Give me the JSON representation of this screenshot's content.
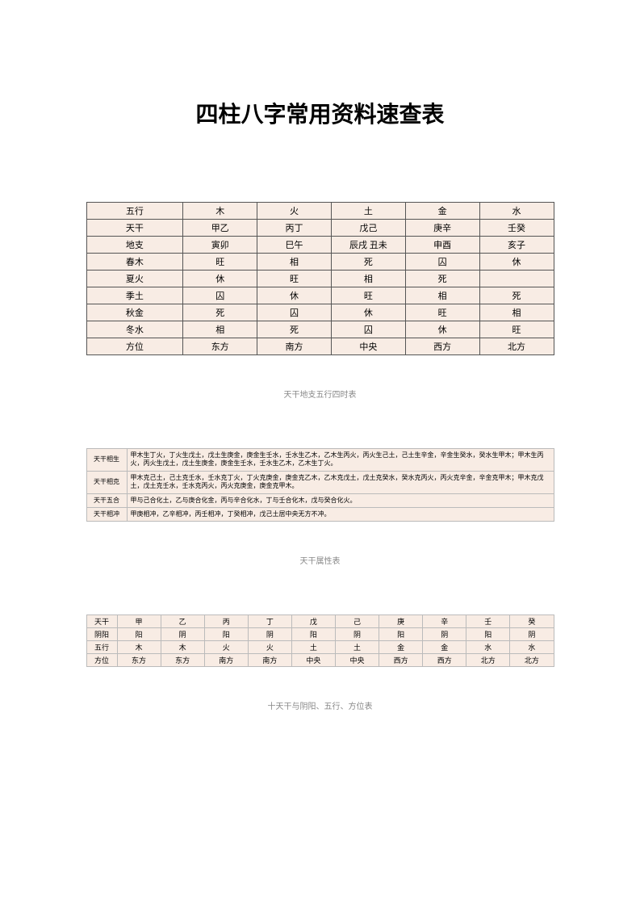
{
  "title": "四柱八字常用资料速查表",
  "table1": {
    "rows": [
      [
        "五行",
        "木",
        "火",
        "土",
        "金",
        "水"
      ],
      [
        "天干",
        "甲乙",
        "丙丁",
        "戊己",
        "庚辛",
        "壬癸"
      ],
      [
        "地支",
        "寅卯",
        "巳午",
        "辰戌 丑未",
        "申酉",
        "亥子"
      ],
      [
        "春木",
        "旺",
        "相",
        "死",
        "囚",
        "休"
      ],
      [
        "夏火",
        "休",
        "旺",
        "相",
        "死",
        ""
      ],
      [
        "季土",
        "囚",
        "休",
        "旺",
        "相",
        "死"
      ],
      [
        "秋金",
        "死",
        "囚",
        "休",
        "旺",
        "相"
      ],
      [
        "冬水",
        "相",
        "死",
        "囚",
        "休",
        "旺"
      ],
      [
        "方位",
        "东方",
        "南方",
        "中央",
        "西方",
        "北方"
      ]
    ],
    "caption": "天干地支五行四时表",
    "bg_color": "#f8ece4",
    "border_color": "#555555"
  },
  "table2": {
    "rows": [
      {
        "label": "天干相生",
        "text": "甲木生丁火，丁火生戊土，戊土生庚金，庚金生壬水，壬水生乙木，乙木生丙火，丙火生己土，己土生辛金，辛金生癸水，癸水生甲木；甲木生丙火，丙火生戊土，戊土生庚金，庚金生壬水，壬水生乙木，乙木生丁火。"
      },
      {
        "label": "天干相克",
        "text": "甲木克己土，己土克壬水，壬水克丁火，丁火克庚金，庚金克乙木，乙木克戊土，戊土克癸水，癸水克丙火，丙火克辛金，辛金克甲木；甲木克戊土，戊土克壬水，壬水克丙火，丙火克庚金，庚金克甲木。"
      },
      {
        "label": "天干五合",
        "text": "甲与己合化土，乙与庚合化金，丙与辛合化水，丁与壬合化木，戊与癸合化火。"
      },
      {
        "label": "天干相冲",
        "text": "甲庚相冲，乙辛相冲，丙壬相冲，丁癸相冲，戊己土居中央无方不冲。"
      }
    ],
    "caption": "天干属性表",
    "bg_color": "#f8ece4",
    "border_color": "#bbbbbb"
  },
  "table3": {
    "rows": [
      [
        "天干",
        "甲",
        "乙",
        "丙",
        "丁",
        "戊",
        "己",
        "庚",
        "辛",
        "壬",
        "癸"
      ],
      [
        "阴阳",
        "阳",
        "阴",
        "阳",
        "阴",
        "阳",
        "阴",
        "阳",
        "阴",
        "阳",
        "阴"
      ],
      [
        "五行",
        "木",
        "木",
        "火",
        "火",
        "土",
        "土",
        "金",
        "金",
        "水",
        "水"
      ],
      [
        "方位",
        "东方",
        "东方",
        "南方",
        "南方",
        "中央",
        "中央",
        "西方",
        "西方",
        "北方",
        "北方"
      ]
    ],
    "caption": "十天干与阴阳、五行、方位表",
    "bg_color": "#f8ece4",
    "border_color": "#bbbbbb"
  }
}
